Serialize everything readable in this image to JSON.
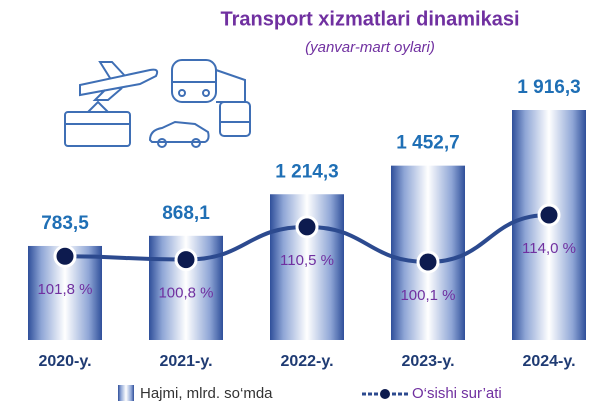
{
  "chart_data": {
    "type": "bar-line",
    "title": "Transport xizmatlari dinamikasi",
    "subtitle": "(yanvar-mart oylari)",
    "categories": [
      "2020-y.",
      "2021-y.",
      "2022-y.",
      "2023-y.",
      "2024-y."
    ],
    "series": [
      {
        "name": "Hajmi, mlrd. so‘mda",
        "color": "#2f4f9a",
        "type": "bar",
        "values": [
          783.5,
          868.1,
          1214.3,
          1452.7,
          1916.3
        ],
        "value_labels": [
          "783,5",
          "868,1",
          "1 214,3",
          "1 452,7",
          "1 916,3"
        ]
      },
      {
        "name": "O‘sishi sur’ati",
        "color": "#2c4a8f",
        "type": "line",
        "axis": "y2",
        "values": [
          101.8,
          100.8,
          110.5,
          100.1,
          114.0
        ],
        "value_labels": [
          "101,8 %",
          "100,8 %",
          "110,5 %",
          "100,1 %",
          "114,0 %"
        ]
      }
    ]
  }
}
